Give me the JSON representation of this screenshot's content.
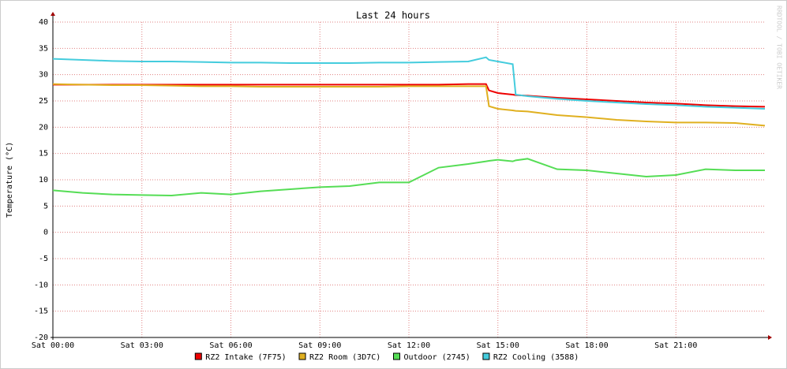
{
  "chart_data": {
    "type": "line",
    "title": "Last 24 hours",
    "y_label": "Temperature (°C)",
    "watermark": "RRDTOOL / TOBI OETIKER",
    "x": [
      0,
      1,
      2,
      3,
      4,
      5,
      6,
      7,
      8,
      9,
      10,
      11,
      12,
      13,
      14,
      14.6,
      14.7,
      15,
      15.5,
      15.6,
      16,
      17,
      18,
      19,
      20,
      21,
      22,
      23,
      24
    ],
    "xlim": [
      0,
      24
    ],
    "xticks": [
      {
        "value": 0,
        "label": "Sat 00:00"
      },
      {
        "value": 3,
        "label": "Sat 03:00"
      },
      {
        "value": 6,
        "label": "Sat 06:00"
      },
      {
        "value": 9,
        "label": "Sat 09:00"
      },
      {
        "value": 12,
        "label": "Sat 12:00"
      },
      {
        "value": 15,
        "label": "Sat 15:00"
      },
      {
        "value": 18,
        "label": "Sat 18:00"
      },
      {
        "value": 21,
        "label": "Sat 21:00"
      }
    ],
    "ylim": [
      -20,
      40
    ],
    "yticks": [
      -20,
      -15,
      -10,
      -5,
      0,
      5,
      10,
      15,
      20,
      25,
      30,
      35,
      40
    ],
    "grid": true,
    "series": [
      {
        "name": "RZ2 Intake (7F75)",
        "color": "#ee0000",
        "values": [
          28.1,
          28.1,
          28.1,
          28.1,
          28.1,
          28.1,
          28.1,
          28.1,
          28.1,
          28.1,
          28.1,
          28.1,
          28.1,
          28.1,
          28.2,
          28.2,
          27,
          26.5,
          26.2,
          26.1,
          26,
          25.6,
          25.3,
          25,
          24.7,
          24.5,
          24.2,
          24,
          23.9
        ]
      },
      {
        "name": "RZ2 Room (3D7C)",
        "color": "#e0b020",
        "values": [
          28.2,
          28.1,
          28,
          28,
          27.9,
          27.8,
          27.8,
          27.7,
          27.7,
          27.7,
          27.7,
          27.7,
          27.8,
          27.8,
          27.8,
          27.8,
          24,
          23.5,
          23.2,
          23.1,
          23,
          22.3,
          21.9,
          21.4,
          21.1,
          20.9,
          20.9,
          20.8,
          20.3
        ]
      },
      {
        "name": "Outdoor (2745)",
        "color": "#55dd55",
        "values": [
          8,
          7.5,
          7.2,
          7.1,
          7,
          7.5,
          7.2,
          7.8,
          8.2,
          8.6,
          8.8,
          9.5,
          9.5,
          12.3,
          13,
          13.5,
          13.6,
          13.8,
          13.5,
          13.7,
          14,
          12,
          11.8,
          11.2,
          10.6,
          10.9,
          12,
          11.8,
          11.8
        ]
      },
      {
        "name": "RZ2 Cooling (3588)",
        "color": "#44ccdd",
        "values": [
          33,
          32.8,
          32.6,
          32.5,
          32.5,
          32.4,
          32.3,
          32.3,
          32.2,
          32.2,
          32.2,
          32.3,
          32.3,
          32.4,
          32.5,
          33.3,
          32.8,
          32.5,
          32,
          26.2,
          25.9,
          25.4,
          25,
          24.7,
          24.4,
          24.2,
          23.9,
          23.7,
          23.5
        ]
      }
    ]
  }
}
